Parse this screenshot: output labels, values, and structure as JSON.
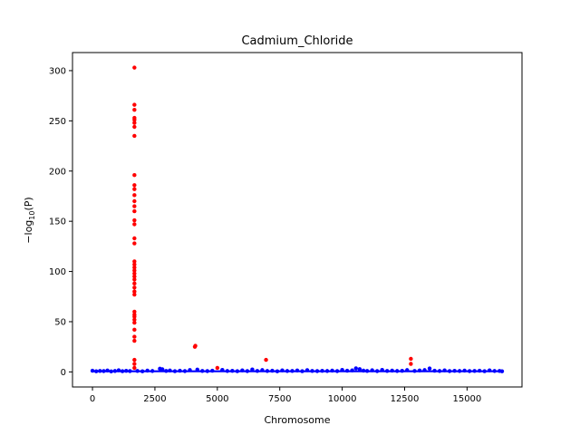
{
  "chart_data": {
    "type": "scatter",
    "title": "Cadmium_Chloride",
    "xlabel": "Chromosome",
    "ylabel_prefix": "−log",
    "ylabel_sub": "10",
    "ylabel_suffix": "(P)",
    "xlim": [
      -800,
      17200
    ],
    "ylim": [
      -15,
      318
    ],
    "xticks": [
      0,
      2500,
      5000,
      7500,
      10000,
      12500,
      15000
    ],
    "yticks": [
      0,
      50,
      100,
      150,
      200,
      250,
      300
    ],
    "grid": false,
    "x_extent": [
      0,
      16400
    ],
    "series": [
      {
        "color": "#0000ff",
        "description": "background points",
        "points": [
          [
            0,
            1.2
          ],
          [
            150,
            0.6
          ],
          [
            300,
            1.0
          ],
          [
            450,
            0.8
          ],
          [
            600,
            1.4
          ],
          [
            750,
            0.5
          ],
          [
            900,
            0.9
          ],
          [
            1050,
            1.6
          ],
          [
            1200,
            0.7
          ],
          [
            1350,
            1.1
          ],
          [
            1500,
            0.8
          ],
          [
            1800,
            1.0
          ],
          [
            2000,
            0.6
          ],
          [
            2200,
            1.3
          ],
          [
            2400,
            0.9
          ],
          [
            2700,
            3.2
          ],
          [
            2800,
            2.6
          ],
          [
            2950,
            1.0
          ],
          [
            3100,
            1.4
          ],
          [
            3300,
            0.7
          ],
          [
            3500,
            1.2
          ],
          [
            3700,
            0.8
          ],
          [
            3900,
            1.9
          ],
          [
            4200,
            2.3
          ],
          [
            4400,
            1.0
          ],
          [
            4600,
            0.8
          ],
          [
            4800,
            1.2
          ],
          [
            5200,
            2.0
          ],
          [
            5400,
            0.9
          ],
          [
            5600,
            1.1
          ],
          [
            5800,
            0.7
          ],
          [
            6000,
            1.5
          ],
          [
            6200,
            0.8
          ],
          [
            6400,
            2.4
          ],
          [
            6600,
            1.0
          ],
          [
            6800,
            1.8
          ],
          [
            7000,
            0.9
          ],
          [
            7200,
            1.2
          ],
          [
            7400,
            0.6
          ],
          [
            7600,
            1.5
          ],
          [
            7800,
            0.9
          ],
          [
            8000,
            1.0
          ],
          [
            8200,
            1.4
          ],
          [
            8400,
            0.7
          ],
          [
            8600,
            1.7
          ],
          [
            8800,
            1.0
          ],
          [
            9000,
            0.8
          ],
          [
            9200,
            1.1
          ],
          [
            9400,
            0.9
          ],
          [
            9600,
            1.3
          ],
          [
            9800,
            0.8
          ],
          [
            10000,
            2.0
          ],
          [
            10200,
            1.2
          ],
          [
            10400,
            1.5
          ],
          [
            10550,
            3.6
          ],
          [
            10700,
            2.8
          ],
          [
            10850,
            1.3
          ],
          [
            11000,
            1.0
          ],
          [
            11200,
            1.6
          ],
          [
            11400,
            0.8
          ],
          [
            11600,
            2.0
          ],
          [
            11800,
            1.0
          ],
          [
            12000,
            1.3
          ],
          [
            12200,
            0.9
          ],
          [
            12400,
            1.1
          ],
          [
            12600,
            1.8
          ],
          [
            12900,
            1.0
          ],
          [
            13100,
            1.4
          ],
          [
            13300,
            1.8
          ],
          [
            13500,
            3.4
          ],
          [
            13700,
            1.2
          ],
          [
            13900,
            0.9
          ],
          [
            14100,
            1.5
          ],
          [
            14300,
            0.8
          ],
          [
            14500,
            1.1
          ],
          [
            14700,
            0.9
          ],
          [
            14900,
            1.3
          ],
          [
            15100,
            0.8
          ],
          [
            15300,
            1.0
          ],
          [
            15500,
            1.2
          ],
          [
            15700,
            0.7
          ],
          [
            15900,
            1.5
          ],
          [
            16100,
            0.9
          ],
          [
            16300,
            1.0
          ],
          [
            16400,
            0.6
          ]
        ]
      },
      {
        "color": "#ff0000",
        "description": "significant points",
        "points": [
          [
            1680,
            303
          ],
          [
            1680,
            266
          ],
          [
            1680,
            261
          ],
          [
            1680,
            253
          ],
          [
            1680,
            251
          ],
          [
            1680,
            248
          ],
          [
            1680,
            244
          ],
          [
            1680,
            235
          ],
          [
            1680,
            196
          ],
          [
            1680,
            186
          ],
          [
            1680,
            182
          ],
          [
            1680,
            176
          ],
          [
            1680,
            170
          ],
          [
            1680,
            165
          ],
          [
            1680,
            160
          ],
          [
            1680,
            151
          ],
          [
            1680,
            147
          ],
          [
            1680,
            133
          ],
          [
            1680,
            128
          ],
          [
            1680,
            110
          ],
          [
            1680,
            107
          ],
          [
            1680,
            104
          ],
          [
            1680,
            101
          ],
          [
            1680,
            98
          ],
          [
            1680,
            95
          ],
          [
            1680,
            92
          ],
          [
            1680,
            88
          ],
          [
            1680,
            84
          ],
          [
            1680,
            80
          ],
          [
            1680,
            77
          ],
          [
            1680,
            60
          ],
          [
            1680,
            57
          ],
          [
            1680,
            55
          ],
          [
            1680,
            52
          ],
          [
            1680,
            49
          ],
          [
            1680,
            42
          ],
          [
            1680,
            35
          ],
          [
            1680,
            31
          ],
          [
            1680,
            12
          ],
          [
            1680,
            8
          ],
          [
            1680,
            4
          ],
          [
            4100,
            25
          ],
          [
            4120,
            26
          ],
          [
            5000,
            4
          ],
          [
            6950,
            12
          ],
          [
            12750,
            13
          ],
          [
            12750,
            8
          ]
        ]
      }
    ]
  }
}
